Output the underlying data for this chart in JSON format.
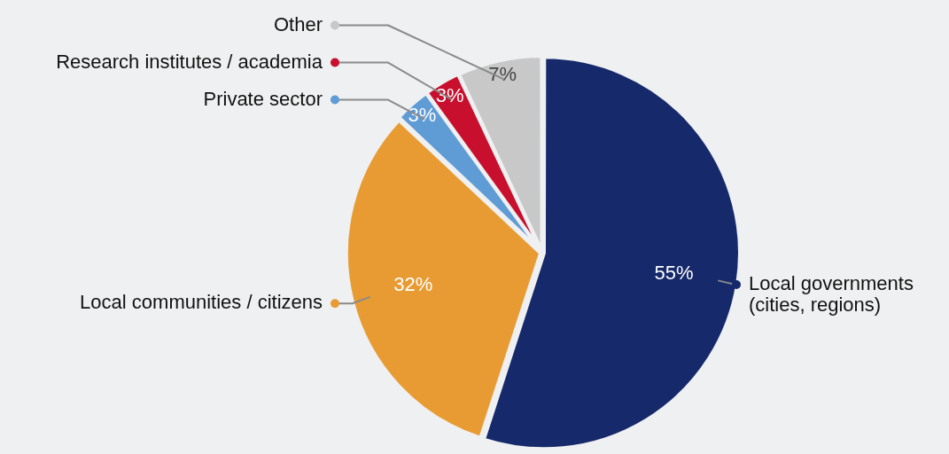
{
  "chart_data": {
    "type": "pie",
    "categories": [
      "Local governments (cities, regions)",
      "Local communities / citizens",
      "Private sector",
      "Research institutes / academia",
      "Other"
    ],
    "values": [
      55,
      32,
      3,
      3,
      7
    ],
    "colors": [
      "#15296b",
      "#e99b33",
      "#5f9bd5",
      "#c8102e",
      "#c8c8c8"
    ],
    "value_labels": [
      "55%",
      "32%",
      "3%",
      "3%",
      "7%"
    ],
    "legend": "left"
  }
}
